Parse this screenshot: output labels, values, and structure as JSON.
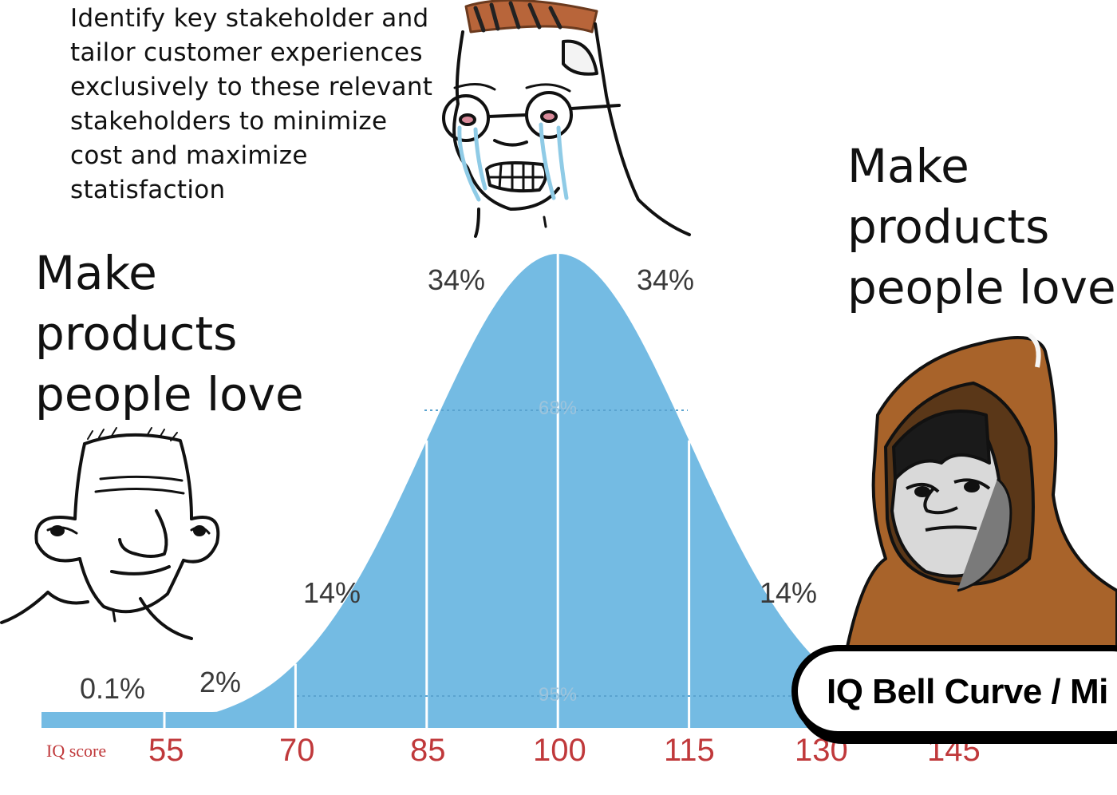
{
  "top_quote": {
    "lines": [
      "Identify key stakeholder and",
      "tailor customer experiences",
      "exclusively to these relevant",
      "stakeholders to minimize",
      "cost and maximize",
      "statisfaction"
    ]
  },
  "left_caption": {
    "lines": [
      "Make",
      "products",
      "people love"
    ]
  },
  "right_caption": {
    "lines": [
      "Make",
      "products",
      "people love"
    ]
  },
  "badge": {
    "label": "IQ Bell Curve / Mi"
  },
  "chart_data": {
    "type": "area",
    "xlabel": "IQ score",
    "x_ticks": [
      "55",
      "70",
      "85",
      "100",
      "115",
      "130",
      "145"
    ],
    "segment_labels": [
      "0.1%",
      "2%",
      "14%",
      "34%",
      "34%",
      "14%"
    ],
    "inner_labels": [
      "68%",
      "95%"
    ],
    "fill_color": "#74bbe3",
    "mean": 100,
    "sd": 15
  },
  "figures": {
    "left": "wojak-simple-icon",
    "middle": "crying-glasses-wojak-icon",
    "right": "hooded-monk-icon"
  }
}
